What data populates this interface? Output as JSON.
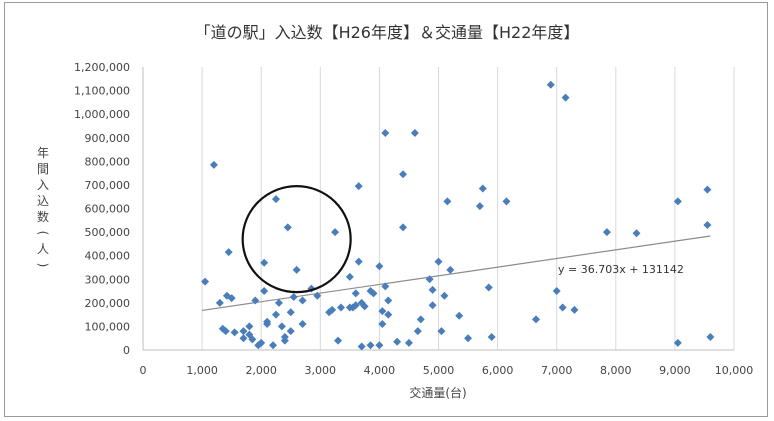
{
  "chart_data": {
    "type": "scatter",
    "title": "「道の駅」入込数【H26年度】＆交通量【H22年度】",
    "xlabel": "交通量(台)",
    "ylabel": "年間入込数(人)",
    "xlim": [
      0,
      10000
    ],
    "ylim": [
      0,
      1200000
    ],
    "x_ticks": [
      0,
      1000,
      2000,
      3000,
      4000,
      5000,
      6000,
      7000,
      8000,
      9000,
      10000
    ],
    "x_tick_labels": [
      "0",
      "1,000",
      "2,000",
      "3,000",
      "4,000",
      "5,000",
      "6,000",
      "7,000",
      "8,000",
      "9,000",
      "10,000"
    ],
    "y_ticks": [
      0,
      100000,
      200000,
      300000,
      400000,
      500000,
      600000,
      700000,
      800000,
      900000,
      1000000,
      1100000,
      1200000
    ],
    "y_tick_labels": [
      "0",
      "100,000",
      "200,000",
      "300,000",
      "400,000",
      "500,000",
      "600,000",
      "700,000",
      "800,000",
      "900,000",
      "1,000,000",
      "1,100,000",
      "1,200,000"
    ],
    "grid": "vertical",
    "marker_color": "#4a7ebb",
    "trendline": {
      "equation": "y = 36.703x + 131142",
      "slope": 36.703,
      "intercept": 131142,
      "x_range": [
        1000,
        9600
      ],
      "color": "#8c8c8c"
    },
    "annotation": {
      "type": "circle",
      "center": [
        2600,
        470000
      ]
    },
    "points": [
      [
        1050,
        290000
      ],
      [
        1200,
        785000
      ],
      [
        1300,
        200000
      ],
      [
        1350,
        90000
      ],
      [
        1400,
        80000
      ],
      [
        1420,
        230000
      ],
      [
        1450,
        415000
      ],
      [
        1500,
        220000
      ],
      [
        1550,
        75000
      ],
      [
        1700,
        50000
      ],
      [
        1700,
        80000
      ],
      [
        1800,
        100000
      ],
      [
        1800,
        65000
      ],
      [
        1850,
        45000
      ],
      [
        1900,
        210000
      ],
      [
        1950,
        20000
      ],
      [
        2000,
        30000
      ],
      [
        2050,
        250000
      ],
      [
        2050,
        370000
      ],
      [
        2100,
        110000
      ],
      [
        2100,
        120000
      ],
      [
        2200,
        20000
      ],
      [
        2250,
        150000
      ],
      [
        2250,
        640000
      ],
      [
        2300,
        200000
      ],
      [
        2350,
        100000
      ],
      [
        2400,
        55000
      ],
      [
        2400,
        40000
      ],
      [
        2450,
        520000
      ],
      [
        2500,
        80000
      ],
      [
        2500,
        160000
      ],
      [
        2550,
        225000
      ],
      [
        2600,
        340000
      ],
      [
        2700,
        110000
      ],
      [
        2700,
        210000
      ],
      [
        2850,
        260000
      ],
      [
        2950,
        230000
      ],
      [
        3150,
        160000
      ],
      [
        3200,
        170000
      ],
      [
        3250,
        500000
      ],
      [
        3300,
        40000
      ],
      [
        3350,
        180000
      ],
      [
        3500,
        180000
      ],
      [
        3500,
        310000
      ],
      [
        3550,
        180000
      ],
      [
        3600,
        240000
      ],
      [
        3600,
        190000
      ],
      [
        3650,
        375000
      ],
      [
        3650,
        695000
      ],
      [
        3700,
        200000
      ],
      [
        3700,
        15000
      ],
      [
        3750,
        185000
      ],
      [
        3850,
        20000
      ],
      [
        3850,
        250000
      ],
      [
        3900,
        240000
      ],
      [
        4000,
        20000
      ],
      [
        4000,
        355000
      ],
      [
        4050,
        110000
      ],
      [
        4050,
        165000
      ],
      [
        4100,
        920000
      ],
      [
        4100,
        270000
      ],
      [
        4150,
        210000
      ],
      [
        4150,
        150000
      ],
      [
        4300,
        35000
      ],
      [
        4400,
        520000
      ],
      [
        4400,
        745000
      ],
      [
        4500,
        30000
      ],
      [
        4600,
        920000
      ],
      [
        4650,
        80000
      ],
      [
        4700,
        130000
      ],
      [
        4850,
        300000
      ],
      [
        4900,
        255000
      ],
      [
        4900,
        190000
      ],
      [
        5000,
        375000
      ],
      [
        5050,
        80000
      ],
      [
        5100,
        230000
      ],
      [
        5150,
        630000
      ],
      [
        5200,
        340000
      ],
      [
        5350,
        145000
      ],
      [
        5500,
        50000
      ],
      [
        5700,
        610000
      ],
      [
        5750,
        685000
      ],
      [
        5850,
        265000
      ],
      [
        5900,
        55000
      ],
      [
        6150,
        630000
      ],
      [
        6650,
        130000
      ],
      [
        6900,
        1125000
      ],
      [
        7000,
        250000
      ],
      [
        7100,
        180000
      ],
      [
        7150,
        1070000
      ],
      [
        7300,
        170000
      ],
      [
        7850,
        500000
      ],
      [
        8350,
        495000
      ],
      [
        9050,
        630000
      ],
      [
        9050,
        30000
      ],
      [
        9550,
        530000
      ],
      [
        9550,
        680000
      ],
      [
        9600,
        55000
      ]
    ]
  }
}
